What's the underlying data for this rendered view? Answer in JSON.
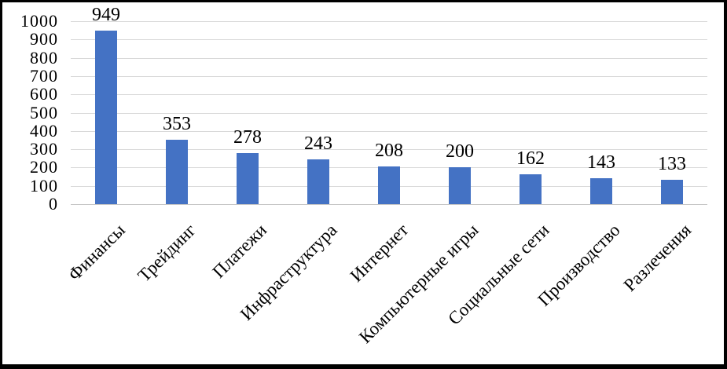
{
  "chart_data": {
    "type": "bar",
    "title": "",
    "xlabel": "",
    "ylabel": "",
    "categories": [
      "Финансы",
      "Трейдинг",
      "Платежи",
      "Инфраструктура",
      "Интернет",
      "Компьютерные игры",
      "Социальные сети",
      "Производство",
      "Разлечения"
    ],
    "values": [
      949,
      353,
      278,
      243,
      208,
      200,
      162,
      143,
      133
    ],
    "data_labels_shown": true,
    "ylim": [
      0,
      1000
    ],
    "ytick_interval": 100,
    "yticks": [
      0,
      100,
      200,
      300,
      400,
      500,
      600,
      700,
      800,
      900,
      1000
    ],
    "grid": true,
    "legend": "none",
    "bar_orientation": "vertical",
    "category_label_rotation_deg": 45,
    "colors": {
      "bar": "#4472C4",
      "gridline": "#D9D9D9",
      "axis_line": "#C6C6C6",
      "text": "#000000",
      "background": "#FFFFFF",
      "frame_border": "#000000"
    }
  }
}
